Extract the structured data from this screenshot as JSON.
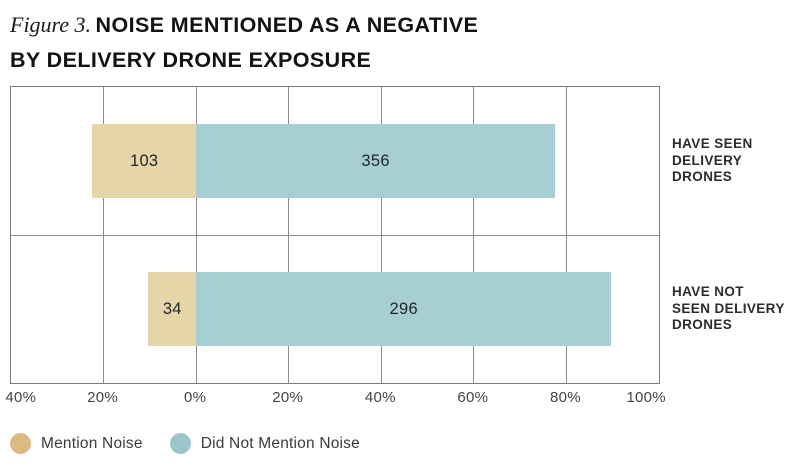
{
  "figure": {
    "label": "Figure 3.",
    "title_line1": "NOISE MENTIONED AS A NEGATIVE",
    "title_line2": "BY DELIVERY DRONE EXPOSURE"
  },
  "chart_data": {
    "type": "bar",
    "variant": "horizontal-diverging-100pct-stacked",
    "title": "Figure 3. NOISE MENTIONED AS A NEGATIVE BY DELIVERY DRONE EXPOSURE",
    "categories": [
      "HAVE SEEN\nDELIVERY\nDRONES",
      "HAVE NOT\nSEEN DELIVERY\nDRONES"
    ],
    "series": [
      {
        "name": "Mention Noise",
        "values": [
          103,
          34
        ],
        "percent_of_row": [
          22.4,
          10.3
        ],
        "side": "left",
        "bar_color": "#e6d5a6",
        "dot_color": "#dcba80"
      },
      {
        "name": "Did Not Mention Noise",
        "values": [
          356,
          296
        ],
        "percent_of_row": [
          77.6,
          89.7
        ],
        "side": "right",
        "bar_color": "#a7ced2",
        "dot_color": "#9cc6cb"
      }
    ],
    "x_axis": {
      "min": -40,
      "max": 100,
      "step": 20,
      "unit": "%",
      "tick_labels": [
        "40%",
        "20%",
        "0%",
        "20%",
        "40%",
        "60%",
        "80%",
        "100%"
      ]
    },
    "grid": true,
    "legend_position": "bottom-left",
    "value_labels_shown": true
  }
}
